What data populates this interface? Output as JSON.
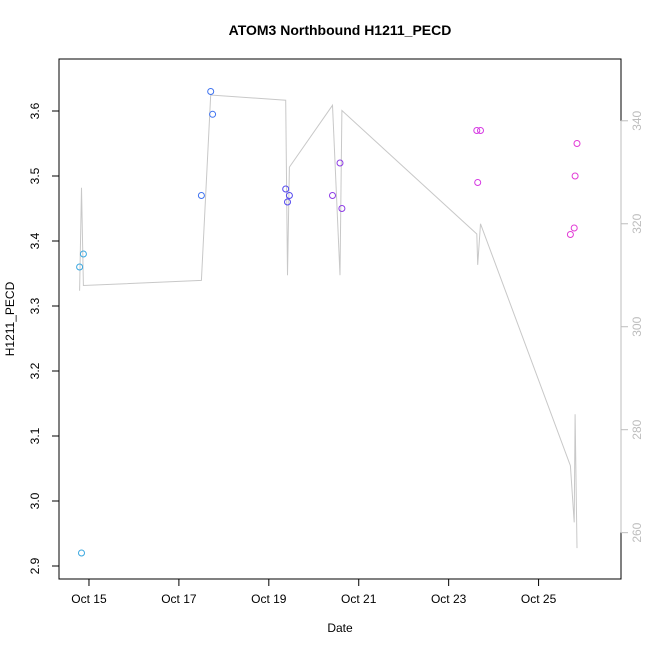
{
  "chart_data": {
    "type": "scatter",
    "title": "ATOM3 Northbound H1211_PECD",
    "xlabel": "Date",
    "ylabel": "H1211_PECD",
    "x_axis": {
      "type": "date",
      "range": [
        "2016-10-14T08:00",
        "2016-10-26T20:00"
      ],
      "ticks": [
        {
          "value": "2016-10-15",
          "label": "Oct 15"
        },
        {
          "value": "2016-10-17",
          "label": "Oct 17"
        },
        {
          "value": "2016-10-19",
          "label": "Oct 19"
        },
        {
          "value": "2016-10-21",
          "label": "Oct 21"
        },
        {
          "value": "2016-10-23",
          "label": "Oct 23"
        },
        {
          "value": "2016-10-25",
          "label": "Oct 25"
        }
      ]
    },
    "y_axis_left": {
      "range": [
        2.88,
        3.68
      ],
      "ticks": [
        2.9,
        3.0,
        3.1,
        3.2,
        3.3,
        3.4,
        3.5,
        3.6
      ],
      "tick_labels": [
        "2.9",
        "3.0",
        "3.1",
        "3.2",
        "3.3",
        "3.4",
        "3.5",
        "3.6"
      ]
    },
    "y_axis_right": {
      "range": [
        251,
        352
      ],
      "ticks": [
        260,
        280,
        300,
        320,
        340
      ],
      "tick_labels": [
        "260",
        "280",
        "300",
        "320",
        "340"
      ],
      "color": "#bdbdbd"
    },
    "grid": false,
    "points": [
      {
        "x": "2016-10-14T19:00",
        "y": 3.36,
        "color": "#3ba8e0"
      },
      {
        "x": "2016-10-14T21:00",
        "y": 3.38,
        "color": "#3ba8e0"
      },
      {
        "x": "2016-10-14T20:00",
        "y": 2.92,
        "color": "#3ba8e0"
      },
      {
        "x": "2016-10-17T12:00",
        "y": 3.47,
        "color": "#3f73f0"
      },
      {
        "x": "2016-10-17T17:00",
        "y": 3.63,
        "color": "#3f73f0"
      },
      {
        "x": "2016-10-17T18:00",
        "y": 3.595,
        "color": "#3f73f0"
      },
      {
        "x": "2016-10-19T09:00",
        "y": 3.48,
        "color": "#5348ee"
      },
      {
        "x": "2016-10-19T10:00",
        "y": 3.46,
        "color": "#5348ee"
      },
      {
        "x": "2016-10-19T11:00",
        "y": 3.47,
        "color": "#5348ee"
      },
      {
        "x": "2016-10-20T10:00",
        "y": 3.47,
        "color": "#8e3ce6"
      },
      {
        "x": "2016-10-20T14:00",
        "y": 3.52,
        "color": "#8e3ce6"
      },
      {
        "x": "2016-10-20T15:00",
        "y": 3.45,
        "color": "#8e3ce6"
      },
      {
        "x": "2016-10-23T15:00",
        "y": 3.57,
        "color": "#d63ae3"
      },
      {
        "x": "2016-10-23T17:00",
        "y": 3.57,
        "color": "#d63ae3"
      },
      {
        "x": "2016-10-23T15:30",
        "y": 3.49,
        "color": "#d63ae3"
      },
      {
        "x": "2016-10-25T17:00",
        "y": 3.41,
        "color": "#e23ad6"
      },
      {
        "x": "2016-10-25T19:00",
        "y": 3.42,
        "color": "#e23ad6"
      },
      {
        "x": "2016-10-25T19:30",
        "y": 3.5,
        "color": "#e23ad6"
      },
      {
        "x": "2016-10-25T20:30",
        "y": 3.55,
        "color": "#e23ad6"
      }
    ],
    "line_series": {
      "axis": "right",
      "color": "#c8c8c8",
      "points": [
        {
          "x": "2016-10-14T19:00",
          "y": 307
        },
        {
          "x": "2016-10-14T20:00",
          "y": 327
        },
        {
          "x": "2016-10-14T21:00",
          "y": 308
        },
        {
          "x": "2016-10-17T12:00",
          "y": 309
        },
        {
          "x": "2016-10-17T17:00",
          "y": 345
        },
        {
          "x": "2016-10-19T09:00",
          "y": 344
        },
        {
          "x": "2016-10-19T10:00",
          "y": 310
        },
        {
          "x": "2016-10-19T11:00",
          "y": 331
        },
        {
          "x": "2016-10-20T10:00",
          "y": 343
        },
        {
          "x": "2016-10-20T14:00",
          "y": 310
        },
        {
          "x": "2016-10-20T15:00",
          "y": 342
        },
        {
          "x": "2016-10-23T15:00",
          "y": 318
        },
        {
          "x": "2016-10-23T15:30",
          "y": 312
        },
        {
          "x": "2016-10-23T17:00",
          "y": 320
        },
        {
          "x": "2016-10-25T17:00",
          "y": 273
        },
        {
          "x": "2016-10-25T19:00",
          "y": 262
        },
        {
          "x": "2016-10-25T19:30",
          "y": 283
        },
        {
          "x": "2016-10-25T20:30",
          "y": 257
        }
      ]
    }
  }
}
